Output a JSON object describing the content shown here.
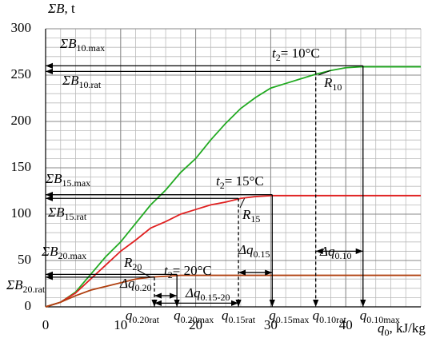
{
  "chart_data": {
    "type": "line",
    "ylabel": {
      "main": "ΣB",
      "rest": ", t"
    },
    "xlabel": {
      "main": "q",
      "sub": "0",
      "rest": ", kJ/kg"
    },
    "xlim": [
      0,
      50
    ],
    "ylim": [
      0,
      300
    ],
    "xticks": [
      0,
      10,
      20,
      30,
      40
    ],
    "yticks": [
      0,
      50,
      100,
      150,
      200,
      250,
      300
    ],
    "minor_grid": {
      "x": 2,
      "y": 10
    },
    "grid": true,
    "series": [
      {
        "label": {
          "main": "t",
          "sub": "2",
          "rest": "= 10°C"
        },
        "color": "#22aa22",
        "x": [
          0,
          2,
          4,
          6,
          8,
          10,
          12,
          14,
          16,
          18,
          20,
          22,
          24,
          26,
          28,
          30,
          32,
          34,
          36,
          38,
          40,
          42,
          50
        ],
        "values": [
          0,
          5,
          16,
          35,
          54,
          70,
          90,
          110,
          126,
          145,
          160,
          180,
          198,
          214,
          226,
          236,
          241,
          246,
          251,
          255,
          258,
          259,
          259
        ]
      },
      {
        "label": {
          "main": "t",
          "sub": "2",
          "rest": "= 15°C"
        },
        "color": "#e02020",
        "x": [
          0,
          2,
          4,
          6,
          8,
          10,
          12,
          14,
          16,
          18,
          20,
          22,
          24,
          26,
          28,
          30,
          50
        ],
        "values": [
          0,
          5,
          15,
          30,
          45,
          60,
          72,
          85,
          92,
          100,
          105,
          110,
          113,
          117,
          119,
          120,
          120
        ]
      },
      {
        "label": {
          "main": "t",
          "sub": "2",
          "rest": "= 20°C"
        },
        "color": "#b04010",
        "x": [
          0,
          2,
          4,
          6,
          8,
          10,
          12,
          14,
          16,
          18,
          50
        ],
        "values": [
          0,
          5,
          12,
          18,
          22,
          26,
          30,
          32,
          33,
          34,
          34
        ]
      }
    ],
    "regimes": [
      {
        "r_label": {
          "main": "R",
          "sub": "10"
        },
        "b_max": 260,
        "b_max_label": {
          "main": "ΣB",
          "sub": "10.max"
        },
        "b_rat": 254,
        "b_rat_label": {
          "main": "ΣB",
          "sub": "10.rat"
        },
        "q_max": 42.3,
        "q_max_label": {
          "main": "q",
          "sub": "0.10max"
        },
        "q_rat": 36,
        "q_rat_label": {
          "main": "q",
          "sub": "0.10rat"
        },
        "dq_label": {
          "main": "Δq",
          "sub": "0.10"
        }
      },
      {
        "r_label": {
          "main": "R",
          "sub": "15"
        },
        "b_max": 121,
        "b_max_label": {
          "main": "ΣB",
          "sub": "15.max"
        },
        "b_rat": 117,
        "b_rat_label": {
          "main": "ΣB",
          "sub": "15.rat"
        },
        "q_max": 30.2,
        "q_max_label": {
          "main": "q",
          "sub": "0.15max"
        },
        "q_rat": 25.7,
        "q_rat_label": {
          "main": "q",
          "sub": "0.15rat"
        },
        "dq_label": {
          "main": "Δq",
          "sub": "0.15"
        }
      },
      {
        "r_label": {
          "main": "R",
          "sub": "20"
        },
        "b_max": 35,
        "b_max_label": {
          "main": "ΣB",
          "sub": "20.max"
        },
        "b_rat": 32,
        "b_rat_label": {
          "main": "ΣB",
          "sub": "20.rat"
        },
        "q_max": 17.5,
        "q_max_label": {
          "main": "q",
          "sub": "0.20max"
        },
        "q_rat": 14.5,
        "q_rat_label": {
          "main": "q",
          "sub": "0.20rat"
        },
        "dq_label": {
          "main": "Δq",
          "sub": "0.20"
        }
      }
    ],
    "cross_delta_label": {
      "main": "Δq",
      "sub": "0.15-20"
    }
  }
}
